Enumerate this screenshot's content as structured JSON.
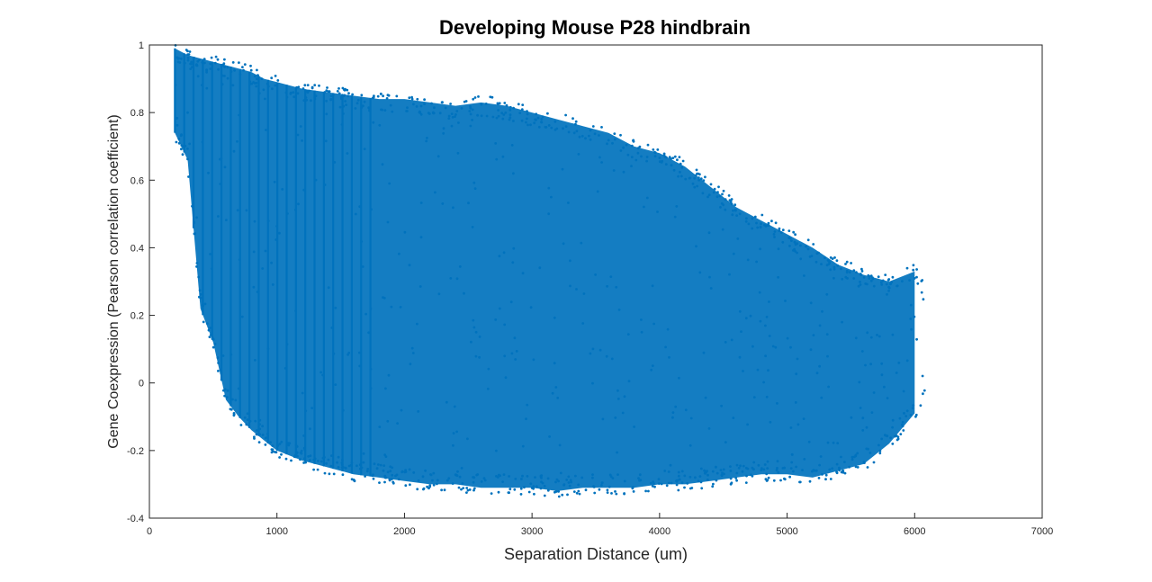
{
  "chart_data": {
    "type": "scatter",
    "title": "Developing Mouse P28 hindbrain",
    "xlabel": "Separation Distance (um)",
    "ylabel": "Gene Coexpression (Pearson correlation coefficient)",
    "xlim": [
      0,
      7000
    ],
    "ylim": [
      -0.4,
      1
    ],
    "xticks": [
      "0",
      "1000",
      "2000",
      "3000",
      "4000",
      "5000",
      "6000",
      "7000"
    ],
    "yticks": [
      "-0.4",
      "-0.2",
      "0",
      "0.2",
      "0.4",
      "0.6",
      "0.8",
      "1"
    ],
    "grid": false,
    "legend": "none",
    "marker_color": "#0072BD",
    "series": [
      {
        "x": [
          200,
          300,
          400,
          500,
          600,
          700,
          800,
          900,
          1000,
          1200,
          1400,
          1600,
          1800,
          2000,
          2200,
          2400,
          2600,
          2800,
          3000,
          3200,
          3400,
          3600,
          3800,
          4000,
          4200,
          4400,
          4600,
          4800,
          5000,
          5200,
          5400,
          5600,
          5800,
          6000
        ],
        "ymax": [
          0.99,
          0.97,
          0.96,
          0.95,
          0.94,
          0.93,
          0.92,
          0.9,
          0.89,
          0.87,
          0.86,
          0.85,
          0.84,
          0.84,
          0.83,
          0.82,
          0.83,
          0.82,
          0.8,
          0.78,
          0.76,
          0.74,
          0.7,
          0.68,
          0.64,
          0.58,
          0.52,
          0.48,
          0.44,
          0.4,
          0.35,
          0.32,
          0.3,
          0.33
        ],
        "ymin": [
          0.74,
          0.66,
          0.22,
          0.12,
          -0.05,
          -0.1,
          -0.14,
          -0.17,
          -0.2,
          -0.23,
          -0.25,
          -0.27,
          -0.28,
          -0.29,
          -0.3,
          -0.3,
          -0.31,
          -0.31,
          -0.31,
          -0.32,
          -0.31,
          -0.31,
          -0.31,
          -0.3,
          -0.3,
          -0.29,
          -0.28,
          -0.27,
          -0.27,
          -0.28,
          -0.26,
          -0.24,
          -0.18,
          -0.09
        ]
      }
    ]
  }
}
